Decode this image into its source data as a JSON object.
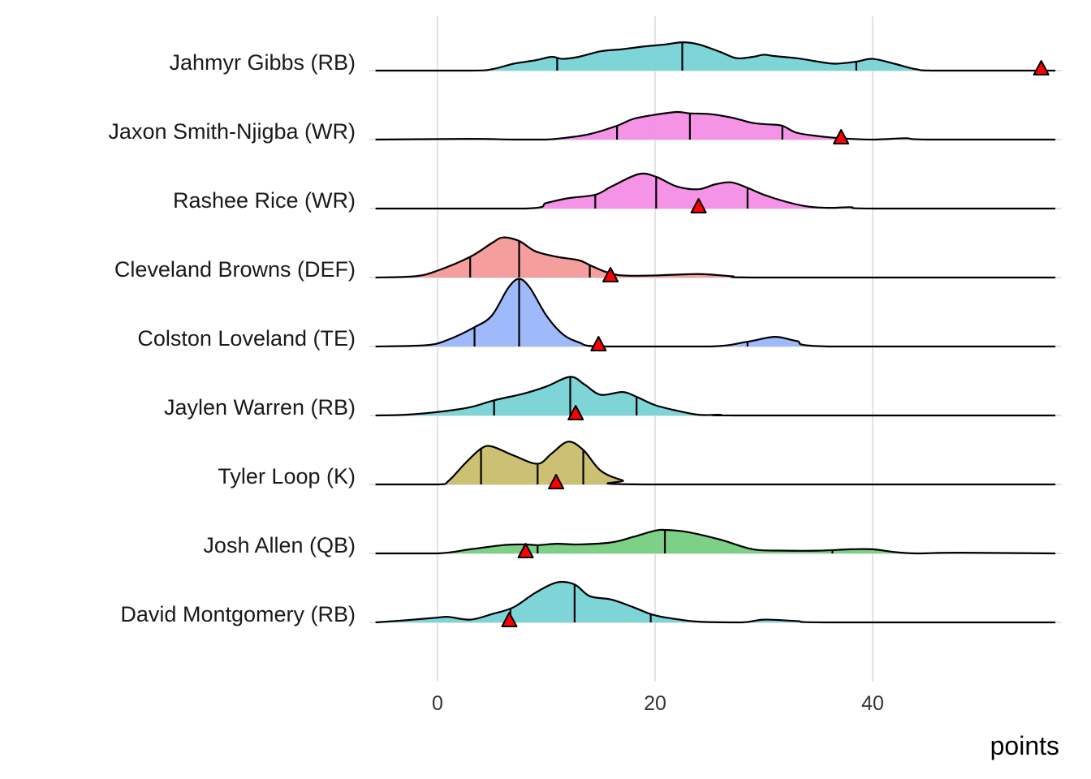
{
  "chart_data": {
    "type": "ridgeline",
    "title": "",
    "xlabel": "points",
    "ylabel": "",
    "xlim": [
      -5.7,
      56.8
    ],
    "x_ticks": [
      0,
      20,
      40
    ],
    "x_tick_labels": [
      "0",
      "20",
      "40"
    ],
    "grid": true,
    "legend": "none",
    "marker": {
      "shape": "triangle",
      "color": "#ff0000",
      "meaning": "actual points"
    },
    "series": [
      {
        "name": "Jahmyr Gibbs (RB)",
        "color": "#76d3d6",
        "quantiles": [
          11,
          22.5,
          38.5
        ],
        "actual": 55.5,
        "density": [
          [
            -5.7,
            0
          ],
          [
            3,
            0
          ],
          [
            5,
            0.02
          ],
          [
            7,
            0.1
          ],
          [
            9,
            0.15
          ],
          [
            10.5,
            0.2
          ],
          [
            11.5,
            0.17
          ],
          [
            13,
            0.2
          ],
          [
            15,
            0.28
          ],
          [
            17,
            0.31
          ],
          [
            19,
            0.35
          ],
          [
            21,
            0.38
          ],
          [
            22.5,
            0.41
          ],
          [
            24,
            0.38
          ],
          [
            26,
            0.27
          ],
          [
            27.5,
            0.18
          ],
          [
            29,
            0.2
          ],
          [
            30,
            0.23
          ],
          [
            31,
            0.21
          ],
          [
            33,
            0.18
          ],
          [
            35,
            0.13
          ],
          [
            36.5,
            0.1
          ],
          [
            38.5,
            0.13
          ],
          [
            40,
            0.17
          ],
          [
            42,
            0.1
          ],
          [
            44,
            0.02
          ],
          [
            46,
            0
          ],
          [
            56.8,
            0
          ]
        ]
      },
      {
        "name": "Jaxon Smith-Njigba (WR)",
        "color": "#f48ee6",
        "quantiles": [
          16.5,
          23.2,
          31.7
        ],
        "actual": 37.1,
        "density": [
          [
            -5.7,
            0
          ],
          [
            3,
            0.01
          ],
          [
            7,
            0
          ],
          [
            10,
            0
          ],
          [
            12,
            0.03
          ],
          [
            14,
            0.08
          ],
          [
            16.5,
            0.2
          ],
          [
            18,
            0.3
          ],
          [
            20,
            0.36
          ],
          [
            22,
            0.4
          ],
          [
            23.2,
            0.38
          ],
          [
            25,
            0.37
          ],
          [
            27,
            0.32
          ],
          [
            29,
            0.24
          ],
          [
            30.5,
            0.22
          ],
          [
            31.7,
            0.2
          ],
          [
            33,
            0.1
          ],
          [
            35,
            0.05
          ],
          [
            37,
            0.02
          ],
          [
            40,
            0
          ],
          [
            43,
            0.02
          ],
          [
            45,
            0
          ],
          [
            56.8,
            0
          ]
        ]
      },
      {
        "name": "Rashee Rice (WR)",
        "color": "#f48ee6",
        "quantiles": [
          14.5,
          20.1,
          28.5
        ],
        "actual": 24.0,
        "density": [
          [
            -5.7,
            0
          ],
          [
            8,
            0
          ],
          [
            10,
            0.08
          ],
          [
            12,
            0.15
          ],
          [
            14.5,
            0.2
          ],
          [
            16,
            0.32
          ],
          [
            18.5,
            0.5
          ],
          [
            20.1,
            0.46
          ],
          [
            22,
            0.32
          ],
          [
            24,
            0.28
          ],
          [
            25.5,
            0.35
          ],
          [
            27,
            0.38
          ],
          [
            28.5,
            0.3
          ],
          [
            30,
            0.2
          ],
          [
            32,
            0.1
          ],
          [
            34,
            0.03
          ],
          [
            36,
            0.01
          ],
          [
            38,
            0.02
          ],
          [
            40,
            0
          ],
          [
            56.8,
            0
          ]
        ]
      },
      {
        "name": "Cleveland Browns (DEF)",
        "color": "#f39a98",
        "quantiles": [
          3.0,
          7.5,
          14.0
        ],
        "actual": 15.9,
        "density": [
          [
            -5.7,
            0
          ],
          [
            -2,
            0.02
          ],
          [
            0,
            0.1
          ],
          [
            3,
            0.3
          ],
          [
            5,
            0.5
          ],
          [
            6,
            0.58
          ],
          [
            7.5,
            0.53
          ],
          [
            9,
            0.38
          ],
          [
            11,
            0.3
          ],
          [
            13,
            0.25
          ],
          [
            14,
            0.18
          ],
          [
            15.5,
            0.08
          ],
          [
            17,
            0.03
          ],
          [
            20,
            0.03
          ],
          [
            24,
            0.05
          ],
          [
            27,
            0.02
          ],
          [
            30,
            0
          ],
          [
            56.8,
            0
          ]
        ]
      },
      {
        "name": "Colston Loveland (TE)",
        "color": "#99b6fb",
        "quantiles": [
          3.4,
          7.5,
          28.5
        ],
        "actual": 14.8,
        "density": [
          [
            -5.7,
            0
          ],
          [
            -1,
            0.02
          ],
          [
            1,
            0.1
          ],
          [
            3.4,
            0.28
          ],
          [
            5,
            0.45
          ],
          [
            6.5,
            0.85
          ],
          [
            7.5,
            0.98
          ],
          [
            8.5,
            0.85
          ],
          [
            10,
            0.45
          ],
          [
            11.5,
            0.18
          ],
          [
            13,
            0.06
          ],
          [
            15,
            0
          ],
          [
            25,
            0
          ],
          [
            28.5,
            0.07
          ],
          [
            31,
            0.14
          ],
          [
            33,
            0.08
          ],
          [
            36,
            0
          ],
          [
            56.8,
            0
          ]
        ]
      },
      {
        "name": "Jaylen Warren (RB)",
        "color": "#76d3d6",
        "quantiles": [
          5.2,
          12.2,
          18.3
        ],
        "actual": 12.7,
        "density": [
          [
            -5.7,
            0
          ],
          [
            -3,
            0.01
          ],
          [
            0,
            0.05
          ],
          [
            3,
            0.12
          ],
          [
            5.2,
            0.22
          ],
          [
            8,
            0.32
          ],
          [
            10,
            0.42
          ],
          [
            12.2,
            0.56
          ],
          [
            13.5,
            0.45
          ],
          [
            15,
            0.3
          ],
          [
            17,
            0.34
          ],
          [
            18.3,
            0.27
          ],
          [
            20,
            0.15
          ],
          [
            22,
            0.07
          ],
          [
            24,
            0.01
          ],
          [
            26,
            0.01
          ],
          [
            28,
            0
          ],
          [
            56.8,
            0
          ]
        ]
      },
      {
        "name": "Tyler Loop (K)",
        "color": "#c9bd6b",
        "quantiles": [
          4.0,
          9.2,
          13.4
        ],
        "actual": 10.9,
        "density": [
          [
            -5.7,
            0
          ],
          [
            0,
            0
          ],
          [
            1,
            0.05
          ],
          [
            2.5,
            0.3
          ],
          [
            4,
            0.52
          ],
          [
            5,
            0.55
          ],
          [
            7,
            0.42
          ],
          [
            9.2,
            0.3
          ],
          [
            10.5,
            0.45
          ],
          [
            12,
            0.62
          ],
          [
            13.4,
            0.5
          ],
          [
            15,
            0.2
          ],
          [
            17,
            0.06
          ],
          [
            19,
            0
          ],
          [
            56.8,
            0
          ]
        ]
      },
      {
        "name": "Josh Allen (QB)",
        "color": "#75cf7f",
        "quantiles": [
          9.2,
          20.9,
          36.3
        ],
        "actual": 8.1,
        "density": [
          [
            -5.7,
            0
          ],
          [
            0,
            0
          ],
          [
            3,
            0.06
          ],
          [
            6,
            0.12
          ],
          [
            8,
            0.13
          ],
          [
            9.2,
            0.12
          ],
          [
            11,
            0.14
          ],
          [
            13,
            0.13
          ],
          [
            16,
            0.16
          ],
          [
            18,
            0.24
          ],
          [
            20,
            0.33
          ],
          [
            21,
            0.34
          ],
          [
            23,
            0.31
          ],
          [
            26,
            0.2
          ],
          [
            29,
            0.06
          ],
          [
            32,
            0.04
          ],
          [
            35,
            0.04
          ],
          [
            38,
            0.06
          ],
          [
            40,
            0.06
          ],
          [
            42,
            0.02
          ],
          [
            44,
            0
          ],
          [
            48,
            0.01
          ],
          [
            56.8,
            0
          ]
        ]
      },
      {
        "name": "David Montgomery (RB)",
        "color": "#76d3d6",
        "quantiles": [
          6.7,
          12.6,
          19.6
        ],
        "actual": 6.6,
        "density": [
          [
            -5.7,
            0
          ],
          [
            -3,
            0.03
          ],
          [
            0,
            0.07
          ],
          [
            1,
            0.08
          ],
          [
            3,
            0.04
          ],
          [
            5,
            0.12
          ],
          [
            7,
            0.22
          ],
          [
            9,
            0.43
          ],
          [
            11,
            0.58
          ],
          [
            12.6,
            0.55
          ],
          [
            14,
            0.38
          ],
          [
            16,
            0.33
          ],
          [
            18,
            0.22
          ],
          [
            19.6,
            0.12
          ],
          [
            21,
            0.07
          ],
          [
            24,
            0.01
          ],
          [
            28,
            0
          ],
          [
            30,
            0.04
          ],
          [
            33,
            0.02
          ],
          [
            36,
            0
          ],
          [
            56.8,
            0
          ]
        ]
      }
    ]
  }
}
